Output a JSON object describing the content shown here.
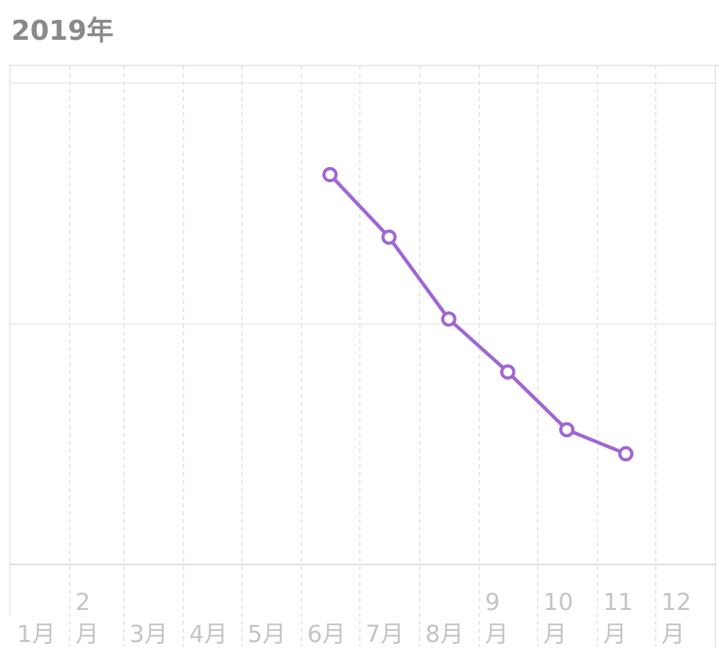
{
  "header": {
    "year_title": "2019年"
  },
  "colors": {
    "series": "#a066d3",
    "grid": "#d6d6d6",
    "tick_text": "#c4c4c4",
    "title": "#8a8a8a"
  },
  "chart_data": {
    "type": "line",
    "title": "",
    "xlabel": "",
    "ylabel": "",
    "categories": [
      "1月",
      "2月",
      "3月",
      "4月",
      "5月",
      "6月",
      "7月",
      "8月",
      "9月",
      "10月",
      "11月",
      "12月"
    ],
    "tick_labels": [
      {
        "top": "",
        "bottom": "1月"
      },
      {
        "top": "2",
        "bottom": "月"
      },
      {
        "top": "",
        "bottom": "3月"
      },
      {
        "top": "",
        "bottom": "4月"
      },
      {
        "top": "",
        "bottom": "5月"
      },
      {
        "top": "",
        "bottom": "6月"
      },
      {
        "top": "",
        "bottom": "7月"
      },
      {
        "top": "",
        "bottom": "8月"
      },
      {
        "top": "9",
        "bottom": "月"
      },
      {
        "top": "10",
        "bottom": "月"
      },
      {
        "top": "11",
        "bottom": "月"
      },
      {
        "top": "12",
        "bottom": "月"
      }
    ],
    "series": [
      {
        "values": [
          null,
          null,
          null,
          null,
          null,
          0.81,
          0.68,
          0.51,
          0.4,
          0.28,
          0.23,
          null
        ]
      }
    ],
    "ylim": [
      0,
      1
    ],
    "grid": true,
    "legend": "none"
  }
}
